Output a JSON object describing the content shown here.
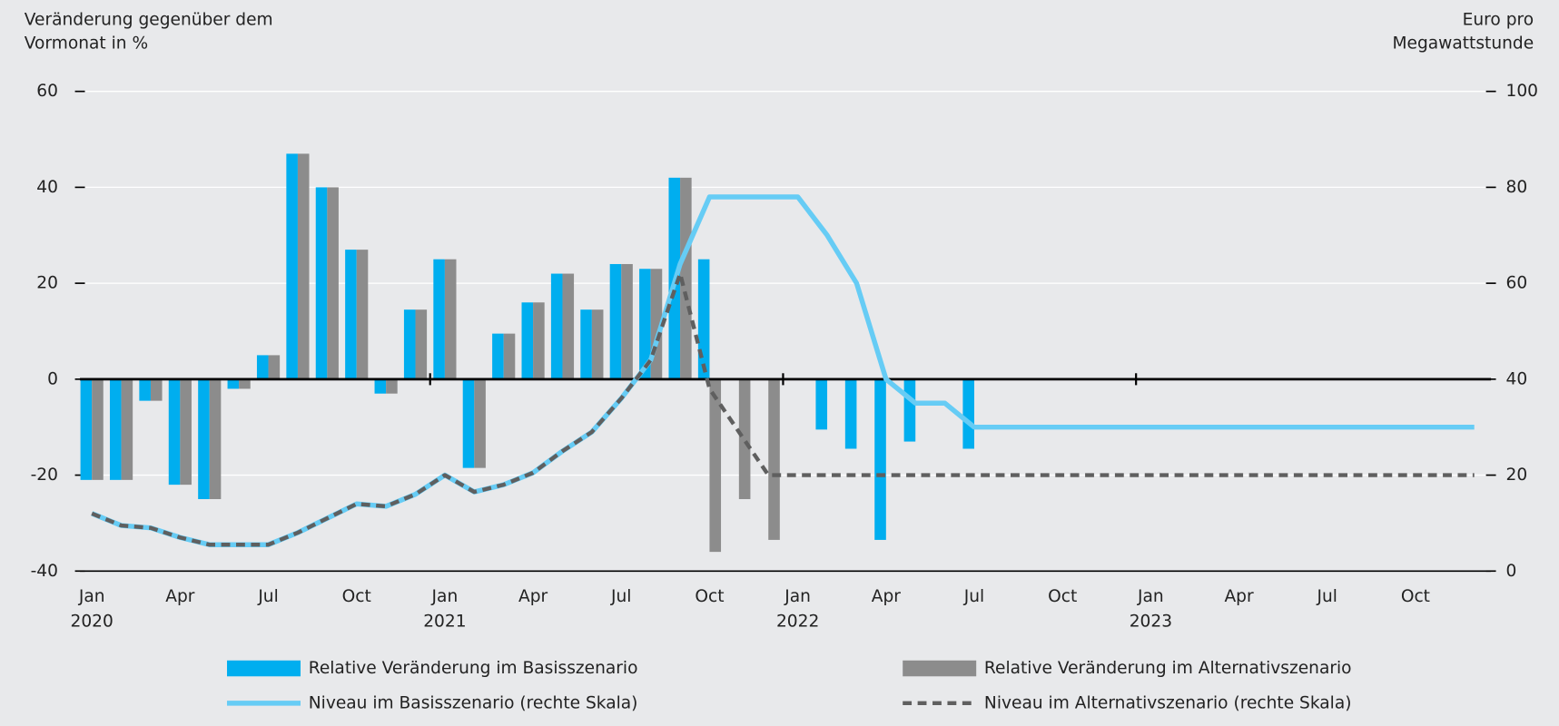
{
  "chart_data": {
    "type": "bar_line",
    "y_axis_title": [
      "Veränderung gegenüber dem",
      "Vormonat in %"
    ],
    "y2_axis_title": [
      "Euro pro",
      "Megawattstunde"
    ],
    "categories": [
      "Jan",
      null,
      null,
      "Apr",
      null,
      null,
      "Jul",
      null,
      null,
      "Oct",
      null,
      null,
      "Jan",
      null,
      null,
      "Apr",
      null,
      null,
      "Jul",
      null,
      null,
      "Oct",
      null,
      null,
      "Jan",
      null,
      null,
      "Apr",
      null,
      null,
      "Jul",
      null,
      null,
      "Oct",
      null,
      null,
      "Jan",
      null,
      null,
      "Apr",
      null,
      null,
      "Jul",
      null,
      null,
      "Oct",
      null,
      null
    ],
    "years": [
      "2020",
      "2021",
      "2022",
      "2023"
    ],
    "ylim": [
      -40,
      60
    ],
    "yticks": [
      -40,
      -20,
      0,
      20,
      40,
      60
    ],
    "y2lim": [
      0,
      100
    ],
    "y2ticks": [
      0,
      20,
      40,
      60,
      80,
      100
    ],
    "grid": true,
    "series": [
      {
        "name": "Relative Veränderung im Basisszenario",
        "kind": "bar",
        "color": "#00aeef",
        "values": [
          -21,
          -21,
          -4.5,
          -22,
          -25,
          -2,
          5,
          47,
          40,
          27,
          -3,
          14.5,
          25,
          -18.5,
          9.5,
          16,
          22,
          14.5,
          24,
          23,
          42,
          25,
          null,
          null,
          null,
          -10.5,
          -14.5,
          -33.5,
          -13,
          null,
          -14.5,
          null,
          null,
          null,
          null,
          null,
          null,
          null,
          null,
          null,
          null,
          null,
          null,
          null,
          null,
          null,
          null,
          null
        ]
      },
      {
        "name": "Relative Veränderung im Alternativszenario",
        "kind": "bar",
        "color": "#8c8c8c",
        "values": [
          -21,
          -21,
          -4.5,
          -22,
          -25,
          -2,
          5,
          47,
          40,
          27,
          -3,
          14.5,
          25,
          -18.5,
          9.5,
          16,
          22,
          14.5,
          24,
          23,
          42,
          -36,
          -25,
          -33.5,
          null,
          null,
          null,
          null,
          null,
          null,
          null,
          null,
          null,
          null,
          null,
          null,
          null,
          null,
          null,
          null,
          null,
          null,
          null,
          null,
          null,
          null,
          null,
          null
        ]
      },
      {
        "name": "Niveau im Basisszenario (rechte Skala)",
        "kind": "line",
        "axis": "y2",
        "color": "#66ccf5",
        "values": [
          12,
          9.5,
          9,
          7,
          5.5,
          5.5,
          5.5,
          8,
          11,
          14,
          13.5,
          16,
          20,
          16.5,
          18,
          20.5,
          25,
          29,
          36,
          44,
          64,
          78,
          78,
          78,
          78,
          70,
          60,
          40,
          35,
          35,
          30,
          30,
          30,
          30,
          30,
          30,
          30,
          30,
          30,
          30,
          30,
          30,
          30,
          30,
          30,
          30,
          30,
          30
        ]
      },
      {
        "name": "Niveau im Alternativszenario (rechte Skala)",
        "kind": "line",
        "dashed": true,
        "axis": "y2",
        "color": "#5f5f5f",
        "values": [
          12,
          9.5,
          9,
          7,
          5.5,
          5.5,
          5.5,
          8,
          11,
          14,
          13.5,
          16,
          20,
          16.5,
          18,
          20.5,
          25,
          29,
          36,
          44,
          62,
          38,
          29,
          20,
          20,
          20,
          20,
          20,
          20,
          20,
          20,
          20,
          20,
          20,
          20,
          20,
          20,
          20,
          20,
          20,
          20,
          20,
          20,
          20,
          20,
          20,
          20,
          20
        ]
      }
    ]
  }
}
